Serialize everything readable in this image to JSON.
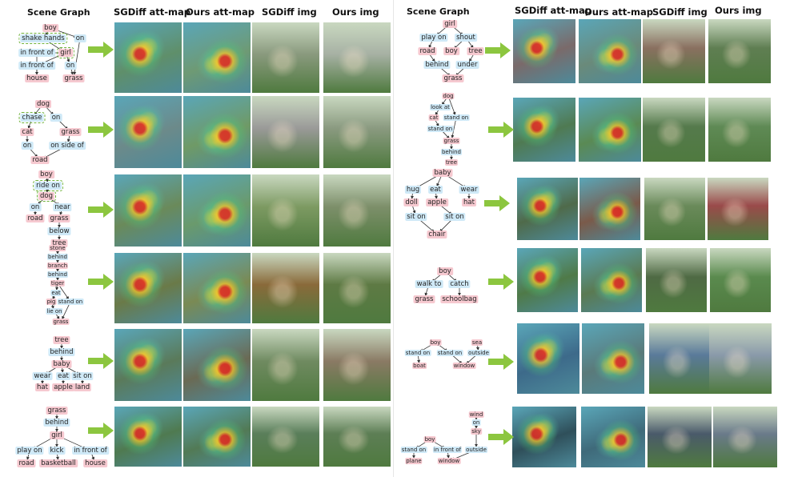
{
  "headers": {
    "left": {
      "scene_graph": "Scene Graph",
      "sgdiff_att": "SGDiff att-map",
      "ours_att": "Ours att-map",
      "sgdiff_img": "SGDiff img",
      "ours_img": "Ours img"
    },
    "right": {
      "scene_graph": "Scene Graph",
      "sgdiff_att": "SGDiff att-map",
      "ours_att": "Ours att-map",
      "sgdiff_img": "SGDiff img",
      "ours_img": "Ours img"
    }
  },
  "colors": {
    "object": "#f6c9d0",
    "relation": "#cfe9f7",
    "highlight": "#6fb23b",
    "arrow": "#8cc63f"
  },
  "graphs": [
    {
      "id": "L1",
      "nodes": [
        {
          "t": "boy",
          "k": "obj"
        },
        {
          "t": "shake hands",
          "k": "rel",
          "hl": true
        },
        {
          "t": "on",
          "k": "rel"
        },
        {
          "t": "in front of",
          "k": "rel"
        },
        {
          "t": "girl",
          "k": "obj",
          "hl": true
        },
        {
          "t": "in front of",
          "k": "rel"
        },
        {
          "t": "on",
          "k": "rel"
        },
        {
          "t": "house",
          "k": "obj"
        },
        {
          "t": "grass",
          "k": "obj"
        }
      ]
    },
    {
      "id": "L2",
      "nodes": [
        {
          "t": "dog",
          "k": "obj"
        },
        {
          "t": "chase",
          "k": "rel",
          "hl": true
        },
        {
          "t": "on",
          "k": "rel"
        },
        {
          "t": "cat",
          "k": "obj"
        },
        {
          "t": "grass",
          "k": "obj"
        },
        {
          "t": "on",
          "k": "rel"
        },
        {
          "t": "on side of",
          "k": "rel"
        },
        {
          "t": "road",
          "k": "obj"
        }
      ]
    },
    {
      "id": "L3",
      "nodes": [
        {
          "t": "boy",
          "k": "obj"
        },
        {
          "t": "ride on",
          "k": "rel",
          "hl": true
        },
        {
          "t": "dog",
          "k": "obj",
          "hl": true
        },
        {
          "t": "on",
          "k": "rel"
        },
        {
          "t": "near",
          "k": "rel"
        },
        {
          "t": "road",
          "k": "obj"
        },
        {
          "t": "grass",
          "k": "obj"
        },
        {
          "t": "below",
          "k": "rel"
        },
        {
          "t": "tree",
          "k": "obj"
        }
      ]
    },
    {
      "id": "L4",
      "nodes": [
        {
          "t": "stone",
          "k": "obj"
        },
        {
          "t": "behind",
          "k": "rel"
        },
        {
          "t": "branch",
          "k": "obj"
        },
        {
          "t": "behind",
          "k": "rel"
        },
        {
          "t": "tiger",
          "k": "obj"
        },
        {
          "t": "eat",
          "k": "rel"
        },
        {
          "t": "pig",
          "k": "obj"
        },
        {
          "t": "stand on",
          "k": "rel"
        },
        {
          "t": "lie on",
          "k": "rel"
        },
        {
          "t": "grass",
          "k": "obj"
        }
      ]
    },
    {
      "id": "L5",
      "nodes": [
        {
          "t": "tree",
          "k": "obj"
        },
        {
          "t": "behind",
          "k": "rel"
        },
        {
          "t": "baby",
          "k": "obj"
        },
        {
          "t": "wear",
          "k": "rel"
        },
        {
          "t": "eat",
          "k": "rel"
        },
        {
          "t": "sit on",
          "k": "rel"
        },
        {
          "t": "hat",
          "k": "obj"
        },
        {
          "t": "apple",
          "k": "obj"
        },
        {
          "t": "land",
          "k": "obj"
        }
      ]
    },
    {
      "id": "L6",
      "nodes": [
        {
          "t": "grass",
          "k": "obj"
        },
        {
          "t": "behind",
          "k": "rel"
        },
        {
          "t": "girl",
          "k": "obj"
        },
        {
          "t": "play on",
          "k": "rel"
        },
        {
          "t": "kick",
          "k": "rel"
        },
        {
          "t": "in front of",
          "k": "rel"
        },
        {
          "t": "road",
          "k": "obj"
        },
        {
          "t": "basketball",
          "k": "obj"
        },
        {
          "t": "house",
          "k": "obj"
        }
      ]
    },
    {
      "id": "R1",
      "nodes": [
        {
          "t": "girl",
          "k": "obj"
        },
        {
          "t": "play on",
          "k": "rel"
        },
        {
          "t": "shout",
          "k": "rel"
        },
        {
          "t": "road",
          "k": "obj"
        },
        {
          "t": "boy",
          "k": "obj"
        },
        {
          "t": "tree",
          "k": "obj"
        },
        {
          "t": "behind",
          "k": "rel"
        },
        {
          "t": "under",
          "k": "rel"
        },
        {
          "t": "grass",
          "k": "obj"
        }
      ]
    },
    {
      "id": "R2",
      "nodes": [
        {
          "t": "dog",
          "k": "obj"
        },
        {
          "t": "look at",
          "k": "rel"
        },
        {
          "t": "cat",
          "k": "obj"
        },
        {
          "t": "stand on",
          "k": "rel"
        },
        {
          "t": "stand on",
          "k": "rel"
        },
        {
          "t": "grass",
          "k": "obj"
        },
        {
          "t": "behind",
          "k": "rel"
        },
        {
          "t": "tree",
          "k": "obj"
        }
      ]
    },
    {
      "id": "R3",
      "nodes": [
        {
          "t": "baby",
          "k": "obj"
        },
        {
          "t": "hug",
          "k": "rel"
        },
        {
          "t": "eat",
          "k": "rel"
        },
        {
          "t": "wear",
          "k": "rel"
        },
        {
          "t": "doll",
          "k": "obj"
        },
        {
          "t": "apple",
          "k": "obj"
        },
        {
          "t": "hat",
          "k": "obj"
        },
        {
          "t": "sit on",
          "k": "rel"
        },
        {
          "t": "sit on",
          "k": "rel"
        },
        {
          "t": "chair",
          "k": "obj"
        }
      ]
    },
    {
      "id": "R4",
      "nodes": [
        {
          "t": "boy",
          "k": "obj"
        },
        {
          "t": "walk to",
          "k": "rel"
        },
        {
          "t": "catch",
          "k": "rel"
        },
        {
          "t": "grass",
          "k": "obj"
        },
        {
          "t": "schoolbag",
          "k": "obj"
        }
      ]
    },
    {
      "id": "R5",
      "nodes": [
        {
          "t": "boy",
          "k": "obj"
        },
        {
          "t": "sea",
          "k": "obj"
        },
        {
          "t": "stand on",
          "k": "rel"
        },
        {
          "t": "stand on",
          "k": "rel"
        },
        {
          "t": "outside",
          "k": "rel"
        },
        {
          "t": "boat",
          "k": "obj"
        },
        {
          "t": "window",
          "k": "obj"
        }
      ]
    },
    {
      "id": "R6",
      "nodes": [
        {
          "t": "wind",
          "k": "obj"
        },
        {
          "t": "on",
          "k": "rel"
        },
        {
          "t": "sky",
          "k": "obj"
        },
        {
          "t": "boy",
          "k": "obj"
        },
        {
          "t": "stand on",
          "k": "rel"
        },
        {
          "t": "in front of",
          "k": "rel"
        },
        {
          "t": "outside",
          "k": "rel"
        },
        {
          "t": "plane",
          "k": "obj"
        },
        {
          "t": "window",
          "k": "obj"
        }
      ]
    }
  ],
  "images": [
    {
      "id": "L1",
      "kinds": [
        "att",
        "att",
        "img",
        "img"
      ],
      "tones": [
        "#5f8f6a",
        "#6e9a74",
        "#8a9a7e",
        "#a7b1a4"
      ]
    },
    {
      "id": "L2",
      "kinds": [
        "att",
        "att",
        "img",
        "img"
      ],
      "tones": [
        "#6c8a8a",
        "#6f9a66",
        "#9a9a98",
        "#8a9a80"
      ]
    },
    {
      "id": "L3",
      "kinds": [
        "att",
        "att",
        "img",
        "img"
      ],
      "tones": [
        "#6a8a5a",
        "#6a9a6c",
        "#7d9a62",
        "#7d8f6a"
      ]
    },
    {
      "id": "L4",
      "kinds": [
        "att",
        "att",
        "img",
        "img"
      ],
      "tones": [
        "#6a7a48",
        "#7a8a54",
        "#8a6a3a",
        "#5e7a44"
      ]
    },
    {
      "id": "L5",
      "kinds": [
        "att",
        "att",
        "img",
        "img"
      ],
      "tones": [
        "#5a7a5a",
        "#6a6a54",
        "#6f8a60",
        "#8a7a64"
      ]
    },
    {
      "id": "L6",
      "kinds": [
        "att",
        "att",
        "img",
        "img"
      ],
      "tones": [
        "#4f7a50",
        "#527a55",
        "#5a7e5a",
        "#5d7e55"
      ]
    },
    {
      "id": "R1",
      "kinds": [
        "att",
        "att",
        "img",
        "img"
      ],
      "tones": [
        "#7a6a6a",
        "#6a8a7a",
        "#8a7060",
        "#5f7e52"
      ]
    },
    {
      "id": "R2",
      "kinds": [
        "att",
        "att",
        "img",
        "img"
      ],
      "tones": [
        "#4f7a52",
        "#5a8a54",
        "#557a4c",
        "#5f8a55"
      ]
    },
    {
      "id": "R3",
      "kinds": [
        "att",
        "att",
        "img",
        "img"
      ],
      "tones": [
        "#4f6a4a",
        "#7a5a4a",
        "#6a8a5a",
        "#9a4a4a"
      ]
    },
    {
      "id": "R4",
      "kinds": [
        "att",
        "att",
        "img",
        "img"
      ],
      "tones": [
        "#4f7a48",
        "#5a7a52",
        "#4f6a44",
        "#5a8a4e"
      ]
    },
    {
      "id": "R5",
      "kinds": [
        "att",
        "att",
        "img",
        "img"
      ],
      "tones": [
        "#3d6a8a",
        "#5a7a7a",
        "#5a7a9a",
        "#8a9aaa"
      ]
    },
    {
      "id": "R6",
      "kinds": [
        "att",
        "att",
        "img",
        "img"
      ],
      "tones": [
        "#2f4f5a",
        "#3f6a7a",
        "#4a5a6a",
        "#6a7a8a"
      ]
    }
  ]
}
